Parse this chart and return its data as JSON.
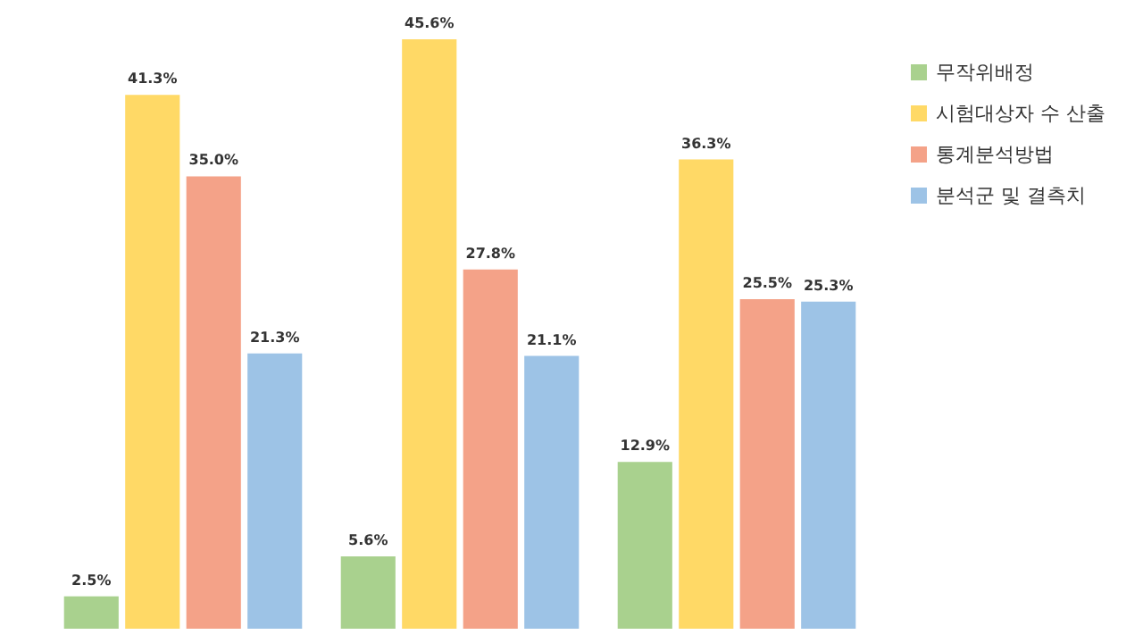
{
  "chart_data": {
    "type": "bar",
    "categories": [
      null,
      null,
      null
    ],
    "series": [
      {
        "name": "무작위배정",
        "color": "#a9d18e",
        "values": [
          2.5,
          5.6,
          12.9
        ],
        "value_labels": [
          "2.5%",
          "5.6%",
          "12.9%"
        ]
      },
      {
        "name": "시험대상자 수 산출",
        "color": "#ffd966",
        "values": [
          41.3,
          45.6,
          36.3
        ],
        "value_labels": [
          "41.3%",
          "45.6%",
          "36.3%"
        ]
      },
      {
        "name": "통계분석방법",
        "color": "#f4a288",
        "values": [
          35.0,
          27.8,
          25.5
        ],
        "value_labels": [
          "35.0%",
          "27.8%",
          "25.5%"
        ]
      },
      {
        "name": "분석군 및 결측치",
        "color": "#9dc3e6",
        "values": [
          21.3,
          21.1,
          25.3
        ],
        "value_labels": [
          "21.3%",
          "21.1%",
          "25.3%"
        ]
      }
    ],
    "legend": "top right"
  }
}
